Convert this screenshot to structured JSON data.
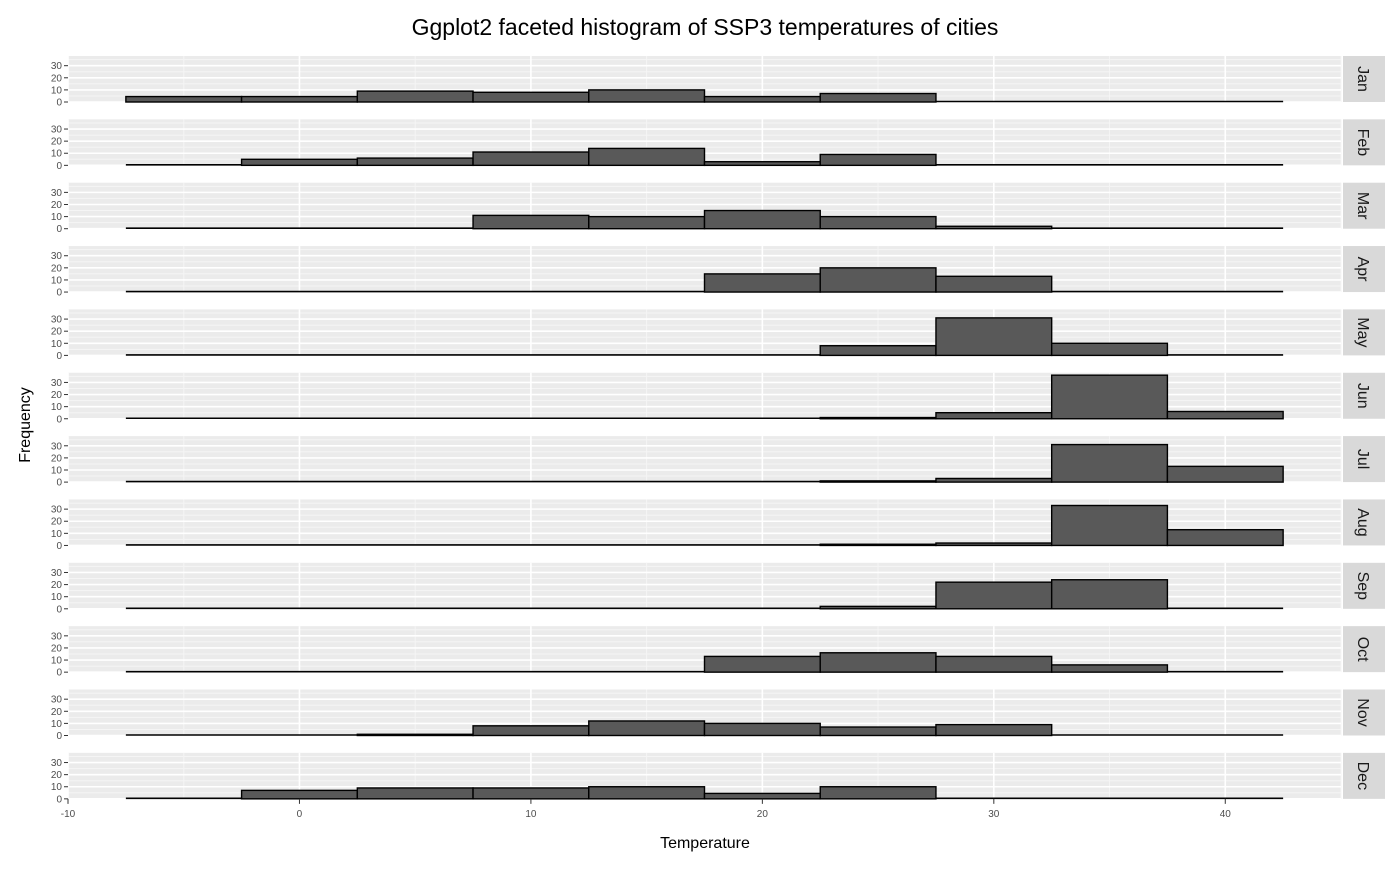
{
  "chart_data": {
    "type": "bar",
    "title": "Ggplot2 faceted histogram of SSP3 temperatures of cities",
    "xlabel": "Temperature",
    "ylabel": "Frequency",
    "xlim": [
      -10,
      45
    ],
    "ylim": [
      0,
      38
    ],
    "x_ticks": [
      -10,
      0,
      10,
      20,
      30,
      40
    ],
    "y_ticks": [
      0,
      10,
      20,
      30
    ],
    "bin_width": 5,
    "bin_centers": [
      -5,
      0,
      5,
      10,
      15,
      20,
      25,
      30,
      35,
      40
    ],
    "grid": true,
    "bar_fill": "#595959",
    "bar_outline": "#000000",
    "panel_background": "#ebebeb",
    "strip_background": "#d9d9d9",
    "facets": [
      {
        "name": "Jan",
        "values": [
          4.5,
          4.5,
          9,
          8,
          10,
          4.5,
          7,
          0,
          0,
          0
        ]
      },
      {
        "name": "Feb",
        "values": [
          0,
          5,
          6,
          11,
          14,
          3,
          9,
          0,
          0,
          0
        ]
      },
      {
        "name": "Mar",
        "values": [
          0,
          0,
          0,
          11,
          10,
          15,
          10,
          2,
          0,
          0
        ]
      },
      {
        "name": "Apr",
        "values": [
          0,
          0,
          0,
          0,
          0,
          15,
          20,
          13,
          0,
          0
        ]
      },
      {
        "name": "May",
        "values": [
          0,
          0,
          0,
          0,
          0,
          0,
          8,
          31,
          10,
          0
        ]
      },
      {
        "name": "Jun",
        "values": [
          0,
          0,
          0,
          0,
          0,
          0,
          1,
          5,
          36,
          6
        ]
      },
      {
        "name": "Jul",
        "values": [
          0,
          0,
          0,
          0,
          0,
          0,
          1,
          3,
          31,
          13
        ]
      },
      {
        "name": "Aug",
        "values": [
          0,
          0,
          0,
          0,
          0,
          0,
          1,
          2,
          33,
          13
        ]
      },
      {
        "name": "Sep",
        "values": [
          0,
          0,
          0,
          0,
          0,
          0,
          2,
          22,
          24,
          0
        ]
      },
      {
        "name": "Oct",
        "values": [
          0,
          0,
          0,
          0,
          0,
          13,
          16,
          13,
          6,
          0
        ]
      },
      {
        "name": "Nov",
        "values": [
          0,
          0,
          1,
          8,
          12,
          10,
          7,
          9,
          0,
          0
        ]
      },
      {
        "name": "Dec",
        "values": [
          0,
          7,
          9,
          9,
          10,
          4.5,
          10,
          0,
          0,
          0
        ]
      }
    ]
  }
}
